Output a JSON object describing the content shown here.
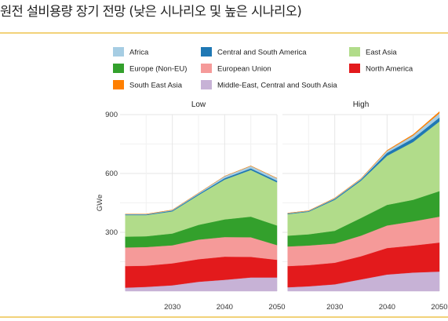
{
  "title": "원전 설비용량 장기 전망 (낮은 시나리오 및 높은 시나리오)",
  "chart_data": {
    "type": "area",
    "stacked": true,
    "ylabel": "GWe",
    "ylim": [
      0,
      900
    ],
    "yticks": [
      300,
      600,
      900
    ],
    "x": [
      2021,
      2025,
      2030,
      2035,
      2040,
      2045,
      2050
    ],
    "xticks": [
      2030,
      2040,
      2050
    ],
    "xlim": [
      2020,
      2050
    ],
    "grid": true,
    "legend_position": "top",
    "series_order": [
      "Middle-East, Central and South Asia",
      "North America",
      "European Union",
      "Europe (Non-EU)",
      "East Asia",
      "Central and South America",
      "Africa",
      "South East Asia"
    ],
    "legend": [
      {
        "name": "Africa",
        "color": "#a6cde3"
      },
      {
        "name": "Central and South America",
        "color": "#1f78b4"
      },
      {
        "name": "East Asia",
        "color": "#b1dc8a"
      },
      {
        "name": "Europe (Non-EU)",
        "color": "#33a02c"
      },
      {
        "name": "European Union",
        "color": "#f59a99"
      },
      {
        "name": "North America",
        "color": "#e31a1c"
      },
      {
        "name": "South East Asia",
        "color": "#ff7f00"
      },
      {
        "name": "Middle-East, Central and South Asia",
        "color": "#c7b2d6"
      }
    ],
    "panels": [
      {
        "title": "Low",
        "series": {
          "Middle-East, Central and South Asia": [
            18,
            22,
            30,
            48,
            58,
            70,
            70
          ],
          "North America": [
            110,
            108,
            112,
            115,
            118,
            105,
            90
          ],
          "European Union": [
            95,
            95,
            92,
            100,
            100,
            100,
            75
          ],
          "Europe (Non-EU)": [
            55,
            55,
            60,
            75,
            90,
            105,
            100
          ],
          "East Asia": [
            110,
            108,
            113,
            152,
            203,
            238,
            220
          ],
          "Central and South America": [
            3,
            3,
            4,
            5,
            7,
            8,
            8
          ],
          "Africa": [
            2,
            2,
            3,
            5,
            10,
            12,
            12
          ],
          "South East Asia": [
            0,
            0,
            0,
            0,
            0,
            1,
            1
          ]
        }
      },
      {
        "title": "High",
        "series": {
          "Middle-East, Central and South Asia": [
            20,
            25,
            35,
            60,
            85,
            95,
            100
          ],
          "North America": [
            108,
            108,
            110,
            118,
            135,
            138,
            148
          ],
          "European Union": [
            100,
            100,
            98,
            105,
            115,
            123,
            132
          ],
          "Europe (Non-EU)": [
            55,
            57,
            65,
            90,
            105,
            110,
            130
          ],
          "East Asia": [
            110,
            115,
            158,
            190,
            250,
            295,
            355
          ],
          "Central and South America": [
            3,
            3,
            5,
            6,
            15,
            18,
            20
          ],
          "Africa": [
            2,
            2,
            3,
            4,
            10,
            15,
            22
          ],
          "South East Asia": [
            0,
            0,
            1,
            1,
            3,
            5,
            8
          ]
        }
      }
    ]
  }
}
